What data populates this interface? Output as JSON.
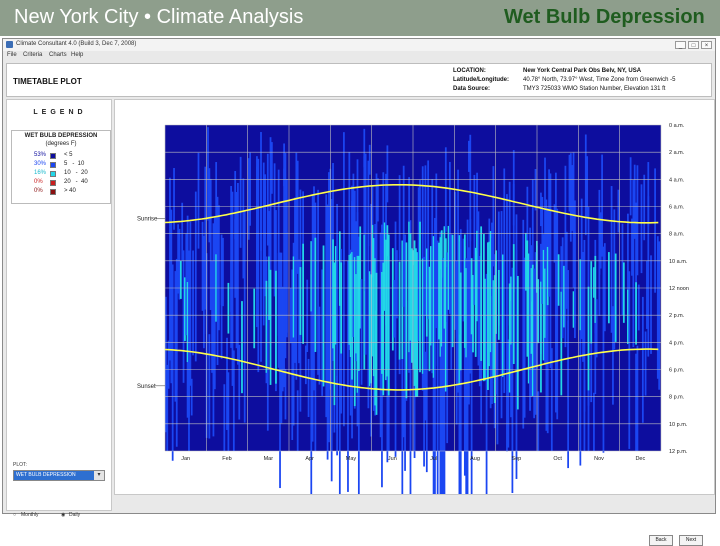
{
  "slide": {
    "title_left": "New York City • Climate Analysis",
    "title_right": "Wet Bulb Depression"
  },
  "window": {
    "title": "Climate Consultant 4.0 (Build 3, Dec 7, 2008)",
    "buttons": [
      "_",
      "□",
      "×"
    ]
  },
  "menu": [
    "File",
    "Criteria",
    "Charts",
    "Help"
  ],
  "header": {
    "plot_type": "TIMETABLE PLOT",
    "location_label": "LOCATION:",
    "location_value": "New York Central Park Obs Belv, NY, USA",
    "latlong_label": "Latitude/Longitude:",
    "latlong_value": "40.78° North, 73.97° West, Time Zone from Greenwich -5",
    "source_label": "Data Source:",
    "source_value": "TMY3     725033 WMO Station Number, Elevation 131 ft"
  },
  "legend": {
    "title": "LEGEND",
    "heading": "WET BULB DEPRESSION",
    "units": "(degrees F)",
    "rows": [
      {
        "pct": "53%",
        "color": "#0d0d9e",
        "pct_color": "#0d0d9e",
        "range": "< 5"
      },
      {
        "pct": "30%",
        "color": "#1b46f2",
        "pct_color": "#1b46f2",
        "range": "5   -  10"
      },
      {
        "pct": "16%",
        "color": "#22d6e8",
        "pct_color": "#18b8cc",
        "range": "10   -  20"
      },
      {
        "pct": "0%",
        "color": "#c81e1e",
        "pct_color": "#c81e1e",
        "range": "20   -  40"
      },
      {
        "pct": "0%",
        "color": "#8a1010",
        "pct_color": "#8a1010",
        "range": "> 40"
      }
    ]
  },
  "plot_selector": {
    "label": "PLOT:",
    "value": "WET BULB DEPRESSION",
    "monthly": "Monthly",
    "daily": "Daily",
    "selected": "Daily"
  },
  "chart_data": {
    "type": "heatmap",
    "x_label_months": [
      "Jan",
      "Feb",
      "Mar",
      "Apr",
      "May",
      "Jun",
      "Jul",
      "Aug",
      "Sep",
      "Oct",
      "Nov",
      "Dec"
    ],
    "y_labels": [
      "0 a.m.",
      "2 a.m.",
      "4 a.m.",
      "6 a.m.",
      "8 a.m.",
      "10 a.m.",
      "12 noon",
      "2 p.m.",
      "4 p.m.",
      "6 p.m.",
      "8 p.m.",
      "10 p.m.",
      "12 p.m."
    ],
    "y_range_hours": [
      0,
      24
    ],
    "grid": true,
    "sunrise_label": "Sunrise",
    "sunset_label": "Sunset",
    "sunrise_range_hours": [
      4.4,
      7.2
    ],
    "sunset_range_hours": [
      16.5,
      19.5
    ],
    "curve_color": "#ffff4a",
    "colors": {
      "lt5": "#0d0d9e",
      "r5_10": "#1b46f2",
      "r10_20": "#22d6e8"
    }
  },
  "buttons": {
    "back": "Back",
    "next": "Next"
  }
}
